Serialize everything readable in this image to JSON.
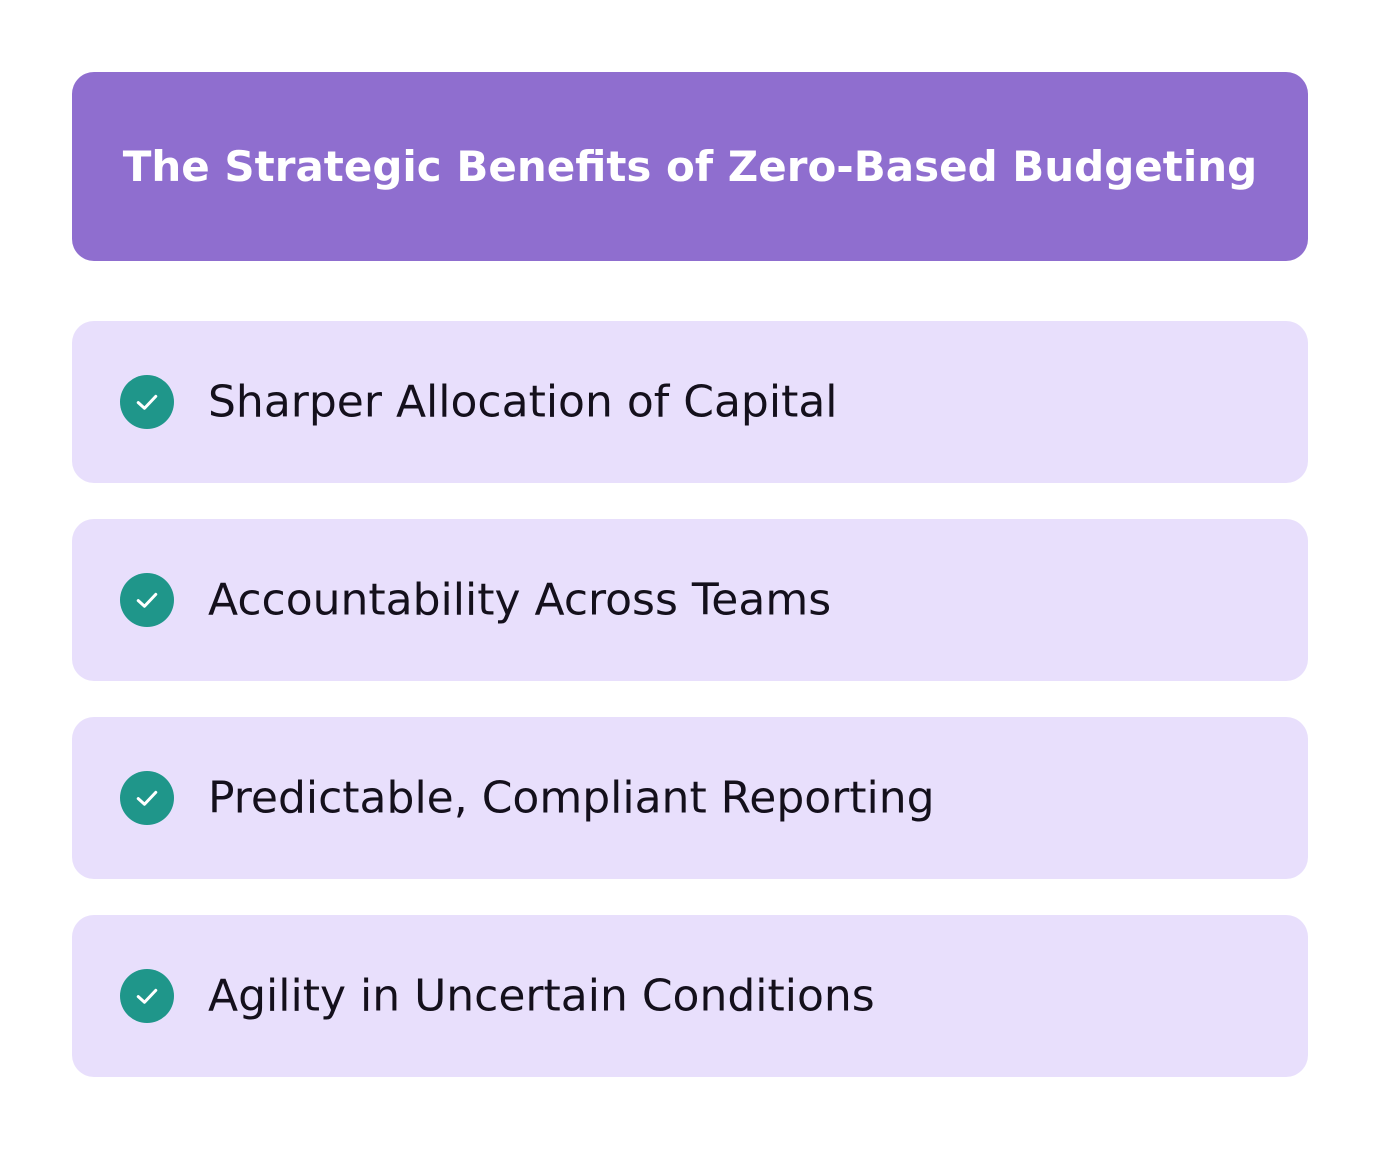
{
  "header": {
    "title": "The Strategic Benefits of Zero-Based Budgeting"
  },
  "benefits": [
    {
      "label": "Sharper Allocation of Capital",
      "icon": "check-circle-icon"
    },
    {
      "label": "Accountability Across Teams",
      "icon": "check-circle-icon"
    },
    {
      "label": "Predictable, Compliant Reporting",
      "icon": "check-circle-icon"
    },
    {
      "label": "Agility in Uncertain Conditions",
      "icon": "check-circle-icon"
    }
  ],
  "colors": {
    "header_bg": "#8f6ecf",
    "item_bg": "#e8dffc",
    "check_bg": "#1f968a",
    "text": "#14101c"
  }
}
